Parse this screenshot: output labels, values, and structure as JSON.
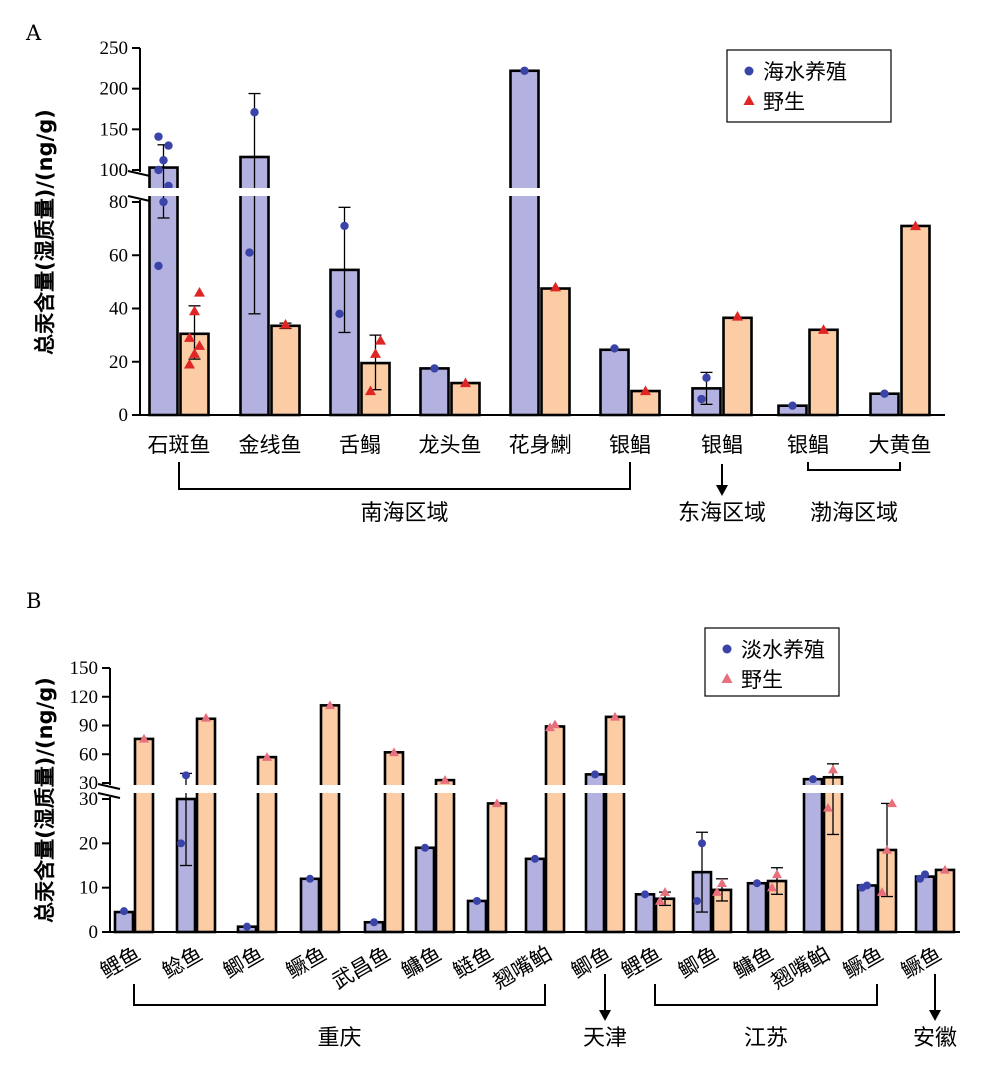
{
  "chart_data": [
    {
      "panel": "A",
      "type": "bar",
      "ylabel": "总汞含量(湿质量)/(ng/g)",
      "ylim": [
        0,
        250
      ],
      "axis_break": [
        80,
        100
      ],
      "lower_ticks": [
        0,
        20,
        40,
        60,
        80
      ],
      "upper_ticks": [
        100,
        150,
        200,
        250
      ],
      "series": [
        {
          "name": "海水养殖",
          "color": "#b3b1e0",
          "marker_color": "#3a44a8",
          "marker": "circle"
        },
        {
          "name": "野生",
          "color": "#fccca4",
          "marker_color": "#e02525",
          "marker": "triangle"
        }
      ],
      "groups": [
        {
          "label": "石斑鱼",
          "bars": [
            {
              "series": 0,
              "value": 103,
              "error": [
                74,
                131
              ],
              "points": [
                56,
                80,
                97,
                100,
                112,
                130,
                141
              ]
            },
            {
              "series": 1,
              "value": 30.5,
              "error": [
                21,
                41
              ],
              "points": [
                19,
                23,
                26,
                29,
                39,
                46
              ]
            }
          ]
        },
        {
          "label": "金线鱼",
          "bars": [
            {
              "series": 0,
              "value": 116,
              "error": [
                38,
                194
              ],
              "points": [
                61,
                171
              ]
            },
            {
              "series": 1,
              "value": 33.5,
              "error": [
                32.5,
                34.5
              ],
              "points": [
                34
              ]
            }
          ]
        },
        {
          "label": "舌鳎",
          "bars": [
            {
              "series": 0,
              "value": 54.5,
              "error": [
                31,
                78
              ],
              "points": [
                38,
                71
              ]
            },
            {
              "series": 1,
              "value": 19.5,
              "error": [
                9.5,
                30
              ],
              "points": [
                9,
                23,
                28
              ]
            }
          ]
        },
        {
          "label": "龙头鱼",
          "bars": [
            {
              "series": 0,
              "value": 17.5,
              "points": [
                17.5
              ]
            },
            {
              "series": 1,
              "value": 12,
              "points": [
                12
              ]
            }
          ]
        },
        {
          "label": "花身鯻",
          "bars": [
            {
              "series": 0,
              "value": 222,
              "points": [
                222
              ]
            },
            {
              "series": 1,
              "value": 47.5,
              "points": [
                48
              ]
            }
          ]
        },
        {
          "label": "银鲳",
          "bars": [
            {
              "series": 0,
              "value": 24.5,
              "points": [
                25
              ]
            },
            {
              "series": 1,
              "value": 9,
              "points": [
                9
              ]
            }
          ]
        },
        {
          "label": "银鲳",
          "bars": [
            {
              "series": 0,
              "value": 10,
              "error": [
                4,
                16
              ],
              "points": [
                6,
                14
              ]
            },
            {
              "series": 1,
              "value": 36.5,
              "points": [
                37
              ]
            }
          ]
        },
        {
          "label": "银鲳",
          "bars": [
            {
              "series": 0,
              "value": 3.5,
              "points": [
                3.5
              ]
            },
            {
              "series": 1,
              "value": 32,
              "points": [
                32
              ]
            }
          ]
        },
        {
          "label": "大黄鱼",
          "bars": [
            {
              "series": 0,
              "value": 8,
              "points": [
                8
              ]
            },
            {
              "series": 1,
              "value": 71,
              "points": [
                71
              ]
            }
          ]
        }
      ],
      "regions": [
        {
          "label": "南海区域",
          "from_group": 0,
          "to_group": 5,
          "style": "bracket"
        },
        {
          "label": "东海区域",
          "group": 6,
          "style": "arrow"
        },
        {
          "label": "渤海区域",
          "from_group": 7,
          "to_group": 8,
          "style": "bracket-up"
        }
      ]
    },
    {
      "panel": "B",
      "type": "bar",
      "ylabel": "总汞含量(湿质量)/(ng/g)",
      "ylim": [
        0,
        150
      ],
      "axis_break": [
        30,
        30
      ],
      "lower_ticks": [
        0,
        10,
        20,
        30
      ],
      "upper_ticks": [
        30,
        60,
        90,
        120,
        150
      ],
      "series": [
        {
          "name": "淡水养殖",
          "color": "#b3b1e0",
          "marker_color": "#3a44a8",
          "marker": "circle"
        },
        {
          "name": "野生",
          "color": "#fccca4",
          "marker_color": "#e8707c",
          "marker": "triangle"
        }
      ],
      "groups": [
        {
          "label": "鲤鱼",
          "bars": [
            {
              "series": 0,
              "value": 4.5,
              "points": [
                4.7
              ]
            },
            {
              "series": 1,
              "value": 76,
              "points": [
                76
              ]
            }
          ]
        },
        {
          "label": "鲶鱼",
          "bars": [
            {
              "series": 0,
              "value": 30,
              "error": [
                15,
                40
              ],
              "points": [
                20,
                38
              ]
            },
            {
              "series": 1,
              "value": 97,
              "points": [
                98
              ]
            }
          ]
        },
        {
          "label": "鲫鱼",
          "bars": [
            {
              "series": 0,
              "value": 1.2,
              "points": [
                1.2
              ]
            },
            {
              "series": 1,
              "value": 57,
              "points": [
                57
              ]
            }
          ]
        },
        {
          "label": "鳜鱼",
          "bars": [
            {
              "series": 0,
              "value": 12,
              "points": [
                12
              ]
            },
            {
              "series": 1,
              "value": 111,
              "points": [
                111
              ]
            }
          ]
        },
        {
          "label": "武昌鱼",
          "bars": [
            {
              "series": 0,
              "value": 2.2,
              "points": [
                2.2
              ]
            },
            {
              "series": 1,
              "value": 62,
              "points": [
                62
              ]
            }
          ]
        },
        {
          "label": "鳙鱼",
          "bars": [
            {
              "series": 0,
              "value": 19,
              "points": [
                19
              ]
            },
            {
              "series": 1,
              "value": 33,
              "points": [
                33
              ]
            }
          ]
        },
        {
          "label": "鲢鱼",
          "bars": [
            {
              "series": 0,
              "value": 7,
              "points": [
                7
              ]
            },
            {
              "series": 1,
              "value": 29,
              "points": [
                29
              ]
            }
          ]
        },
        {
          "label": "翘嘴鲌",
          "bars": [
            {
              "series": 0,
              "value": 16.5,
              "points": [
                16.5
              ]
            },
            {
              "series": 1,
              "value": 89,
              "points": [
                88,
                91
              ]
            }
          ]
        },
        {
          "label": "鲫鱼",
          "bars": [
            {
              "series": 0,
              "value": 39,
              "points": [
                39
              ]
            },
            {
              "series": 1,
              "value": 99,
              "points": [
                99
              ]
            }
          ]
        },
        {
          "label": "鲤鱼",
          "bars": [
            {
              "series": 0,
              "value": 8.5,
              "points": [
                8.5
              ]
            },
            {
              "series": 1,
              "value": 7.5,
              "error": [
                6,
                9
              ],
              "points": [
                7,
                9
              ]
            }
          ]
        },
        {
          "label": "鲫鱼",
          "bars": [
            {
              "series": 0,
              "value": 13.5,
              "error": [
                4.5,
                22.5
              ],
              "points": [
                7,
                20
              ]
            },
            {
              "series": 1,
              "value": 9.5,
              "error": [
                7,
                12
              ],
              "points": [
                9,
                11
              ]
            }
          ]
        },
        {
          "label": "鳙鱼",
          "bars": [
            {
              "series": 0,
              "value": 11,
              "points": [
                11
              ]
            },
            {
              "series": 1,
              "value": 11.5,
              "error": [
                8.5,
                14.5
              ],
              "points": [
                10,
                13
              ]
            }
          ]
        },
        {
          "label": "翘嘴鲌",
          "bars": [
            {
              "series": 0,
              "value": 34,
              "points": [
                34
              ]
            },
            {
              "series": 1,
              "value": 36,
              "error": [
                22,
                50
              ],
              "points": [
                28,
                44
              ]
            }
          ]
        },
        {
          "label": "鳜鱼",
          "bars": [
            {
              "series": 0,
              "value": 10.5,
              "points": [
                10,
                10.5
              ]
            },
            {
              "series": 1,
              "value": 18.5,
              "error": [
                8,
                29
              ],
              "points": [
                9,
                18.5,
                29
              ]
            }
          ]
        },
        {
          "label": "鳜鱼",
          "bars": [
            {
              "series": 0,
              "value": 12.5,
              "points": [
                12,
                13
              ]
            },
            {
              "series": 1,
              "value": 14,
              "points": [
                14
              ]
            }
          ]
        }
      ],
      "regions": [
        {
          "label": "重庆",
          "from_group": 0,
          "to_group": 7,
          "style": "bracket"
        },
        {
          "label": "天津",
          "group": 8,
          "style": "arrow"
        },
        {
          "label": "江苏",
          "from_group": 9,
          "to_group": 13,
          "style": "bracket"
        },
        {
          "label": "安徽",
          "group": 14,
          "style": "arrow"
        }
      ]
    }
  ]
}
